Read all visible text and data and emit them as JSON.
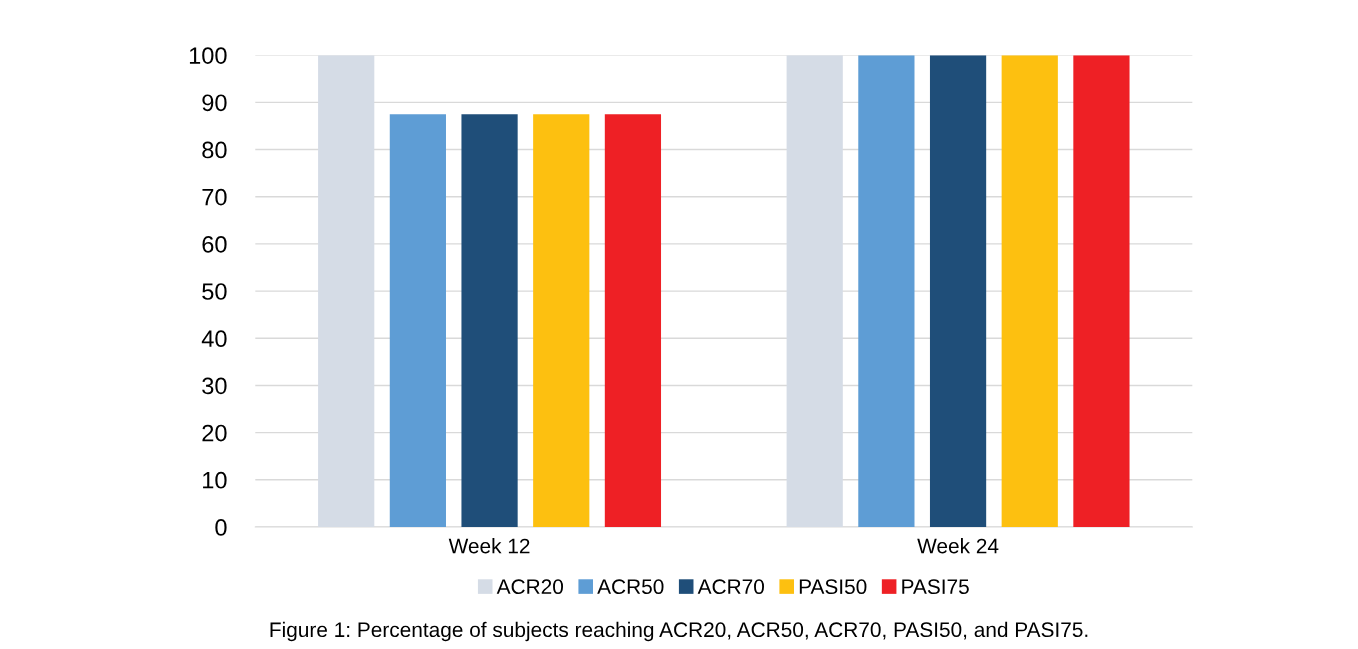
{
  "chart_data": {
    "type": "bar",
    "categories": [
      "Week 12",
      "Week 24"
    ],
    "series": [
      {
        "name": "ACR20",
        "color": "#d5dce6",
        "values": [
          100,
          100
        ]
      },
      {
        "name": "ACR50",
        "color": "#5e9dd5",
        "values": [
          87.5,
          100
        ]
      },
      {
        "name": "ACR70",
        "color": "#1f4e79",
        "values": [
          87.5,
          100
        ]
      },
      {
        "name": "PASI50",
        "color": "#fdc010",
        "values": [
          87.5,
          100
        ]
      },
      {
        "name": "PASI75",
        "color": "#ee2025",
        "values": [
          87.5,
          100
        ]
      }
    ],
    "ylim": [
      0,
      100
    ],
    "yticks": [
      0,
      10,
      20,
      30,
      40,
      50,
      60,
      70,
      80,
      90,
      100
    ],
    "grid": "y",
    "legend": "bottom",
    "annotations": [
      "Figure 1: Percentage of subjects reaching ACR20, ACR50, ACR70, PASI50, and PASI75."
    ]
  }
}
